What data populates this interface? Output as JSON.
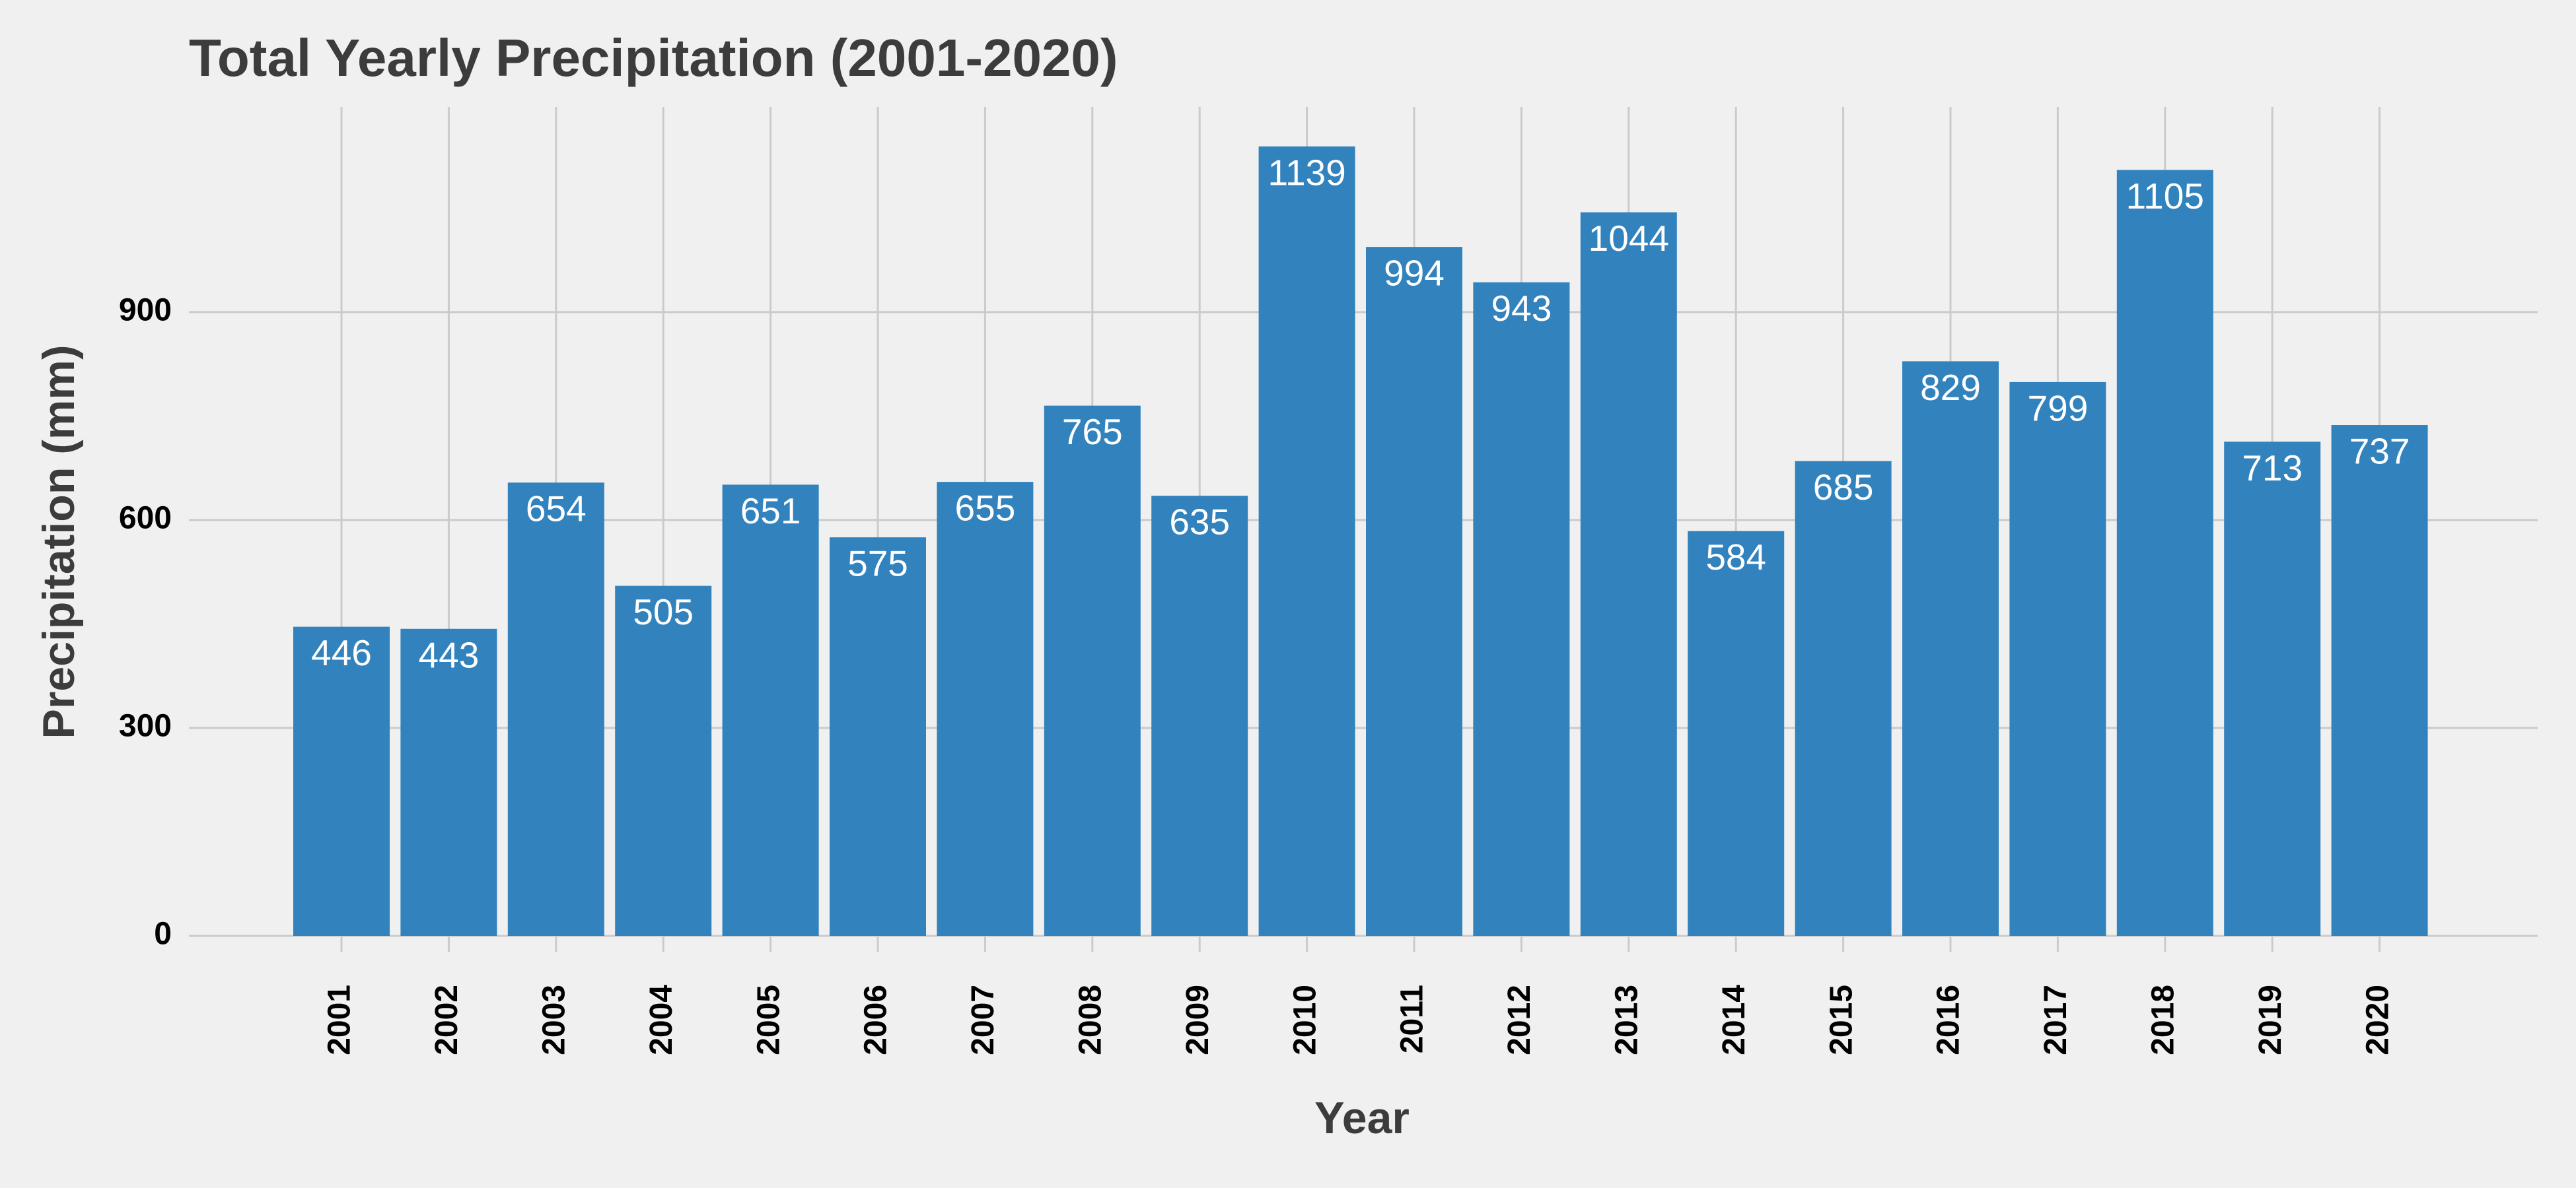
{
  "chart_data": {
    "type": "bar",
    "title": "Total Yearly Precipitation (2001-2020)",
    "x_label": "Year",
    "y_label": "Precipitation (mm)",
    "categories": [
      "2001",
      "2002",
      "2003",
      "2004",
      "2005",
      "2006",
      "2007",
      "2008",
      "2009",
      "2010",
      "2011",
      "2012",
      "2013",
      "2014",
      "2015",
      "2016",
      "2017",
      "2018",
      "2019",
      "2020"
    ],
    "values": [
      446,
      443,
      654,
      505,
      651,
      575,
      655,
      765,
      635,
      1139,
      994,
      943,
      1044,
      584,
      685,
      829,
      799,
      1105,
      713,
      737
    ],
    "color": "#3182bd",
    "ylim": [
      0,
      1196
    ],
    "yticks": [
      0,
      300,
      600,
      900
    ],
    "grid": true
  }
}
